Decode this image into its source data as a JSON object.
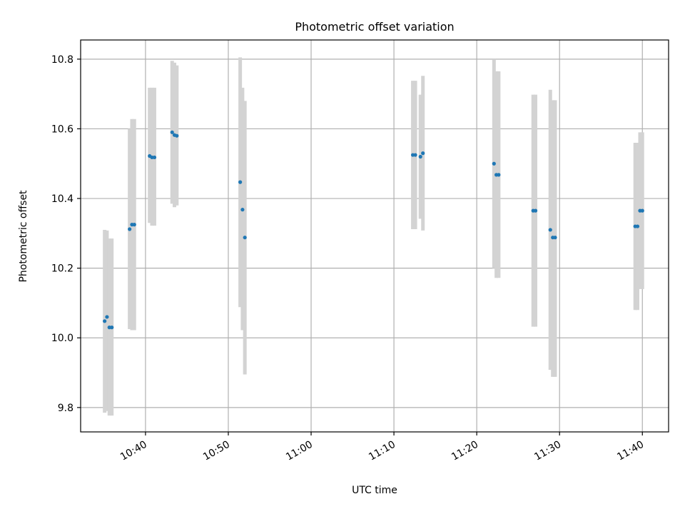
{
  "chart_data": {
    "type": "scatter",
    "title": "Photometric offset variation",
    "xlabel": "UTC time",
    "ylabel": "Photometric offset",
    "x_ticks": [
      "10:40",
      "10:50",
      "11:00",
      "11:10",
      "11:20",
      "11:30",
      "11:40"
    ],
    "y_ticks": [
      "9.8",
      "10.0",
      "10.2",
      "10.4",
      "10.6",
      "10.8"
    ],
    "xlim": [
      "10:32:10",
      "11:43:10"
    ],
    "ylim": [
      9.73,
      10.855
    ],
    "grid": true,
    "colors": {
      "point": "#1f77b4",
      "error_bar": "#d3d3d3",
      "grid": "#b0b0b0"
    },
    "series": [
      {
        "points": [
          {
            "x": "10:35:04",
            "y": 10.048,
            "ylow": 9.785,
            "yhigh": 10.31
          },
          {
            "x": "10:35:21",
            "y": 10.06,
            "ylow": 9.79,
            "yhigh": 10.308
          },
          {
            "x": "10:35:38",
            "y": 10.03,
            "ylow": 9.777,
            "yhigh": 10.285
          },
          {
            "x": "10:35:56",
            "y": 10.03,
            "ylow": 9.777,
            "yhigh": 10.285
          },
          {
            "x": "10:38:05",
            "y": 10.312,
            "ylow": 10.025,
            "yhigh": 10.6
          },
          {
            "x": "10:38:22",
            "y": 10.325,
            "ylow": 10.022,
            "yhigh": 10.628
          },
          {
            "x": "10:38:39",
            "y": 10.325,
            "ylow": 10.022,
            "yhigh": 10.628
          },
          {
            "x": "10:40:30",
            "y": 10.522,
            "ylow": 10.33,
            "yhigh": 10.718
          },
          {
            "x": "10:40:47",
            "y": 10.518,
            "ylow": 10.322,
            "yhigh": 10.718
          },
          {
            "x": "10:41:05",
            "y": 10.518,
            "ylow": 10.322,
            "yhigh": 10.718
          },
          {
            "x": "10:43:13",
            "y": 10.59,
            "ylow": 10.385,
            "yhigh": 10.795
          },
          {
            "x": "10:43:30",
            "y": 10.582,
            "ylow": 10.375,
            "yhigh": 10.79
          },
          {
            "x": "10:43:47",
            "y": 10.58,
            "ylow": 10.38,
            "yhigh": 10.782
          },
          {
            "x": "10:51:26",
            "y": 10.447,
            "ylow": 10.088,
            "yhigh": 10.805
          },
          {
            "x": "10:51:43",
            "y": 10.368,
            "ylow": 10.022,
            "yhigh": 10.718
          },
          {
            "x": "10:52:00",
            "y": 10.288,
            "ylow": 9.895,
            "yhigh": 10.68
          },
          {
            "x": "11:12:17",
            "y": 10.525,
            "ylow": 10.312,
            "yhigh": 10.738
          },
          {
            "x": "11:12:35",
            "y": 10.525,
            "ylow": 10.312,
            "yhigh": 10.738
          },
          {
            "x": "11:13:12",
            "y": 10.52,
            "ylow": 10.342,
            "yhigh": 10.698
          },
          {
            "x": "11:13:30",
            "y": 10.53,
            "ylow": 10.308,
            "yhigh": 10.752
          },
          {
            "x": "11:22:05",
            "y": 10.5,
            "ylow": 10.2,
            "yhigh": 10.8
          },
          {
            "x": "11:22:22",
            "y": 10.468,
            "ylow": 10.172,
            "yhigh": 10.765
          },
          {
            "x": "11:22:39",
            "y": 10.468,
            "ylow": 10.172,
            "yhigh": 10.765
          },
          {
            "x": "11:26:49",
            "y": 10.365,
            "ylow": 10.032,
            "yhigh": 10.698
          },
          {
            "x": "11:27:06",
            "y": 10.365,
            "ylow": 10.032,
            "yhigh": 10.698
          },
          {
            "x": "11:28:53",
            "y": 10.31,
            "ylow": 9.908,
            "yhigh": 10.712
          },
          {
            "x": "11:29:11",
            "y": 10.288,
            "ylow": 9.888,
            "yhigh": 10.682
          },
          {
            "x": "11:29:28",
            "y": 10.288,
            "ylow": 9.888,
            "yhigh": 10.682
          },
          {
            "x": "11:39:08",
            "y": 10.32,
            "ylow": 10.08,
            "yhigh": 10.56
          },
          {
            "x": "11:39:25",
            "y": 10.32,
            "ylow": 10.08,
            "yhigh": 10.56
          },
          {
            "x": "11:39:43",
            "y": 10.365,
            "ylow": 10.14,
            "yhigh": 10.59
          },
          {
            "x": "11:40:00",
            "y": 10.365,
            "ylow": 10.14,
            "yhigh": 10.59
          }
        ]
      }
    ]
  }
}
